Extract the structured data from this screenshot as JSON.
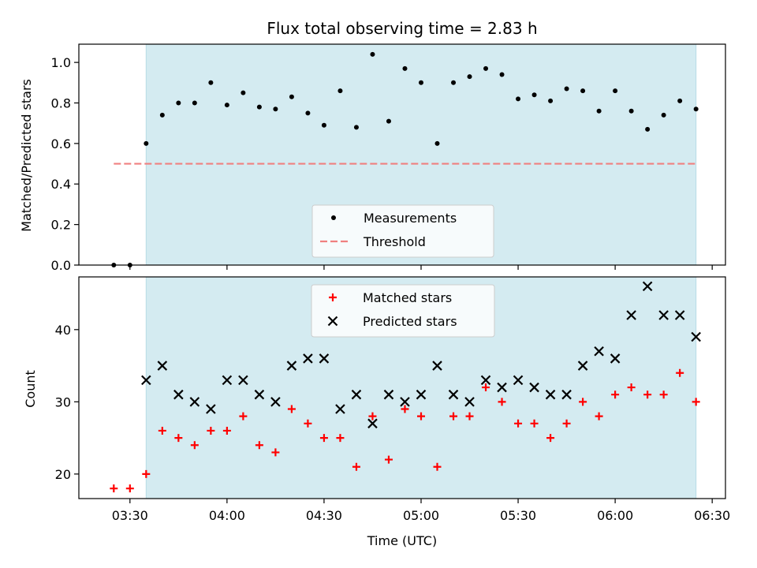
{
  "title": "Flux total observing time = 2.83 h",
  "xlabel": "Time (UTC)",
  "colors": {
    "shade": "#d4ebf1",
    "shade_edge": "#b8dce6",
    "threshold": "#f08080",
    "matched": "#ff0000",
    "predicted": "#000000",
    "measurement": "#000000"
  },
  "x_ticks": [
    "03:30",
    "04:00",
    "04:30",
    "05:00",
    "05:30",
    "06:00",
    "06:30"
  ],
  "chart_data": [
    {
      "type": "scatter",
      "panel": "top",
      "ylabel": "Matched/Predicted stars",
      "ylim": [
        0,
        1.09
      ],
      "y_ticks": [
        "0.0",
        "0.2",
        "0.4",
        "0.6",
        "0.8",
        "1.0"
      ],
      "shaded_span": [
        "03:35",
        "06:25"
      ],
      "threshold": {
        "name": "Threshold",
        "value": 0.5,
        "span": [
          "03:25",
          "06:25"
        ]
      },
      "legend": [
        "Measurements",
        "Threshold"
      ],
      "legend_position": "lower center",
      "series": [
        {
          "name": "Measurements",
          "marker": "dot",
          "x": [
            "03:25",
            "03:30",
            "03:35",
            "03:40",
            "03:45",
            "03:50",
            "03:55",
            "04:00",
            "04:05",
            "04:10",
            "04:15",
            "04:20",
            "04:25",
            "04:30",
            "04:35",
            "04:40",
            "04:45",
            "04:50",
            "04:55",
            "05:00",
            "05:05",
            "05:10",
            "05:15",
            "05:20",
            "05:25",
            "05:30",
            "05:35",
            "05:40",
            "05:45",
            "05:50",
            "05:55",
            "06:00",
            "06:05",
            "06:10",
            "06:15",
            "06:20",
            "06:25"
          ],
          "values": [
            0.0,
            0.0,
            0.6,
            0.74,
            0.8,
            0.8,
            0.9,
            0.79,
            0.85,
            0.78,
            0.77,
            0.83,
            0.75,
            0.69,
            0.86,
            0.68,
            1.04,
            0.71,
            0.97,
            0.9,
            0.6,
            0.9,
            0.93,
            0.97,
            0.94,
            0.82,
            0.84,
            0.81,
            0.87,
            0.86,
            0.76,
            0.86,
            0.76,
            0.67,
            0.74,
            0.81,
            0.77
          ]
        }
      ]
    },
    {
      "type": "scatter",
      "panel": "bottom",
      "ylabel": "Count",
      "ylim": [
        16.6,
        47.3
      ],
      "y_ticks": [
        "20",
        "30",
        "40"
      ],
      "shaded_span": [
        "03:35",
        "06:25"
      ],
      "legend": [
        "Matched stars",
        "Predicted stars"
      ],
      "legend_position": "upper center",
      "series": [
        {
          "name": "Matched stars",
          "marker": "plus",
          "x": [
            "03:25",
            "03:30",
            "03:35",
            "03:40",
            "03:45",
            "03:50",
            "03:55",
            "04:00",
            "04:05",
            "04:10",
            "04:15",
            "04:20",
            "04:25",
            "04:30",
            "04:35",
            "04:40",
            "04:45",
            "04:50",
            "04:55",
            "05:00",
            "05:05",
            "05:10",
            "05:15",
            "05:20",
            "05:25",
            "05:30",
            "05:35",
            "05:40",
            "05:45",
            "05:50",
            "05:55",
            "06:00",
            "06:05",
            "06:10",
            "06:15",
            "06:20",
            "06:25"
          ],
          "values": [
            18,
            18,
            20,
            26,
            25,
            24,
            26,
            26,
            28,
            24,
            23,
            29,
            27,
            25,
            25,
            21,
            28,
            22,
            29,
            28,
            21,
            28,
            28,
            32,
            30,
            27,
            27,
            25,
            27,
            30,
            28,
            31,
            32,
            31,
            31,
            34,
            30
          ]
        },
        {
          "name": "Predicted stars",
          "marker": "x",
          "x": [
            "03:35",
            "03:40",
            "03:45",
            "03:50",
            "03:55",
            "04:00",
            "04:05",
            "04:10",
            "04:15",
            "04:20",
            "04:25",
            "04:30",
            "04:35",
            "04:40",
            "04:45",
            "04:50",
            "04:55",
            "05:00",
            "05:05",
            "05:10",
            "05:15",
            "05:20",
            "05:25",
            "05:30",
            "05:35",
            "05:40",
            "05:45",
            "05:50",
            "05:55",
            "06:00",
            "06:05",
            "06:10",
            "06:15",
            "06:20",
            "06:25"
          ],
          "values": [
            33,
            35,
            31,
            30,
            29,
            33,
            33,
            31,
            30,
            35,
            36,
            36,
            29,
            31,
            27,
            31,
            30,
            31,
            35,
            31,
            30,
            33,
            32,
            33,
            32,
            31,
            31,
            35,
            37,
            36,
            42,
            46,
            42,
            42,
            39
          ]
        }
      ]
    }
  ]
}
